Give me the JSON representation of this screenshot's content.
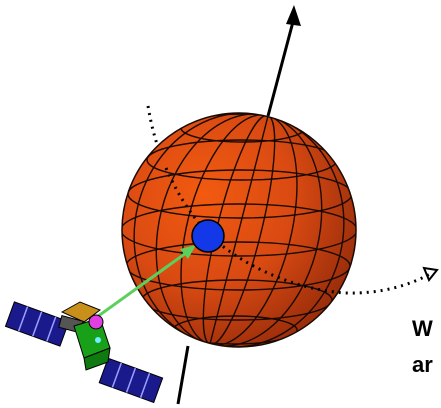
{
  "caption": {
    "line1": "W",
    "line2": "ar"
  },
  "colors": {
    "planet_light": "#f25a10",
    "planet_mid": "#d94a12",
    "planet_dark": "#9c2e0b",
    "grid": "#1a0a04",
    "axis": "#000000",
    "target_marker": "#1238e8",
    "pointing_arrow": "#5ccf5c",
    "spacecraft_panel": "#1a1a8c",
    "spacecraft_bus": "#19a019",
    "spacecraft_gold": "#c8901a",
    "spacecraft_antenna": "#e040e0"
  },
  "icons": {
    "planet": "sphere-icon",
    "spacecraft": "satellite-icon",
    "target": "point-marker-icon"
  }
}
